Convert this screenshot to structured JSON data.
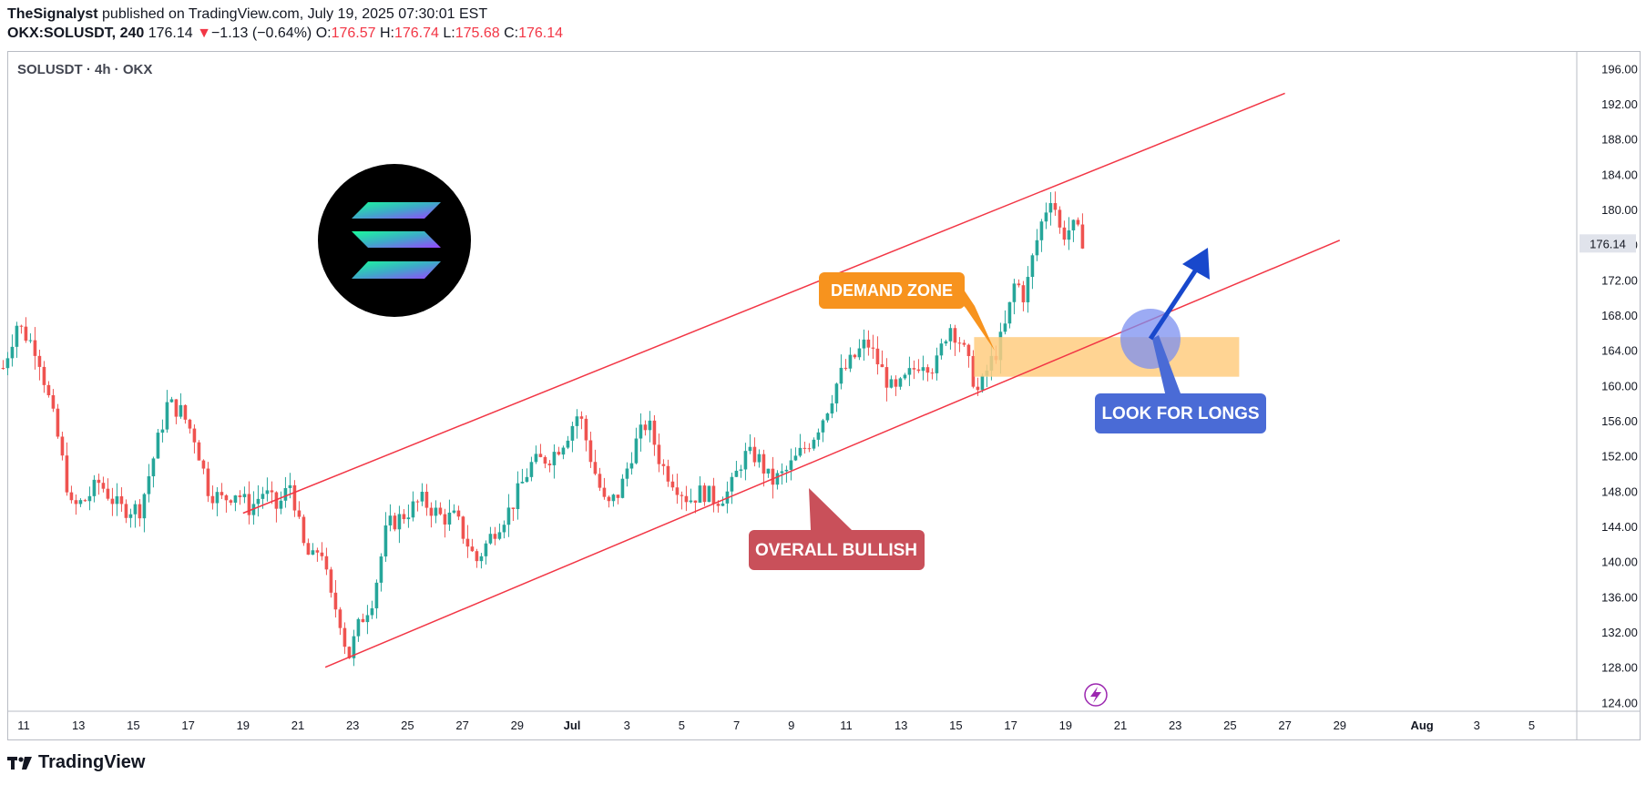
{
  "header": {
    "author": "TheSignalyst",
    "published": " published on TradingView.com, July 19, 2025 07:30:01 EST",
    "symbol": "OKX:SOLUSDT, 240",
    "last": "176.14",
    "change_arrow": "▼",
    "change": "−1.13 (−0.64%)",
    "o_label": "O:",
    "o": "176.57",
    "h_label": "H:",
    "h": "176.74",
    "l_label": "L:",
    "l": "175.68",
    "c_label": "C:",
    "c": "176.14"
  },
  "symbol_label": "SOLUSDT · 4h · OKX",
  "footer": {
    "brand": "TradingView"
  },
  "colors": {
    "up": "#26a69a",
    "down": "#ef5350",
    "channel": "#f23645",
    "demand": "#ffcc80",
    "demand_label": "#f7931e",
    "bullish_label": "#c9505a",
    "longs_label": "#4a6bd6",
    "arrow": "#1848cc"
  },
  "chart_data": {
    "type": "candlestick",
    "y_axis": {
      "ticks": [
        124,
        128,
        132,
        136,
        140,
        144,
        148,
        152,
        156,
        160,
        164,
        168,
        172,
        176,
        180,
        184,
        188,
        192,
        196
      ],
      "ylim": [
        123,
        198
      ],
      "side": "right"
    },
    "x_axis": {
      "ticks": [
        "11",
        "13",
        "15",
        "17",
        "19",
        "21",
        "23",
        "25",
        "27",
        "29",
        "Jul",
        "3",
        "5",
        "7",
        "9",
        "11",
        "13",
        "15",
        "17",
        "19",
        "21",
        "23",
        "25",
        "27",
        "29",
        "Aug",
        "3",
        "5"
      ]
    },
    "last_price": 176.14,
    "close_path": [
      [
        "2025-06-10",
        162
      ],
      [
        "2025-06-10",
        167
      ],
      [
        "2025-06-11",
        164
      ],
      [
        "2025-06-12",
        154
      ],
      [
        "2025-06-12",
        146
      ],
      [
        "2025-06-13",
        147
      ],
      [
        "2025-06-13",
        149
      ],
      [
        "2025-06-14",
        146
      ],
      [
        "2025-06-15",
        146
      ],
      [
        "2025-06-15",
        152
      ],
      [
        "2025-06-16",
        158
      ],
      [
        "2025-06-16",
        157
      ],
      [
        "2025-06-17",
        154
      ],
      [
        "2025-06-17",
        148
      ],
      [
        "2025-06-18",
        147
      ],
      [
        "2025-06-18",
        148
      ],
      [
        "2025-06-19",
        146
      ],
      [
        "2025-06-19",
        148
      ],
      [
        "2025-06-20",
        146
      ],
      [
        "2025-06-20",
        149
      ],
      [
        "2025-06-21",
        142
      ],
      [
        "2025-06-21",
        140
      ],
      [
        "2025-06-21",
        142
      ],
      [
        "2025-06-22",
        136
      ],
      [
        "2025-06-22",
        134
      ],
      [
        "2025-06-22",
        129
      ],
      [
        "2025-06-23",
        133
      ],
      [
        "2025-06-23",
        136
      ],
      [
        "2025-06-24",
        144
      ],
      [
        "2025-06-24",
        145
      ],
      [
        "2025-06-25",
        147
      ],
      [
        "2025-06-26",
        145
      ],
      [
        "2025-06-26",
        145
      ],
      [
        "2025-06-27",
        140
      ],
      [
        "2025-06-28",
        144
      ],
      [
        "2025-06-28",
        146
      ],
      [
        "2025-06-29",
        151
      ],
      [
        "2025-06-30",
        152
      ],
      [
        "2025-06-30",
        154
      ],
      [
        "2025-07-01",
        157
      ],
      [
        "2025-07-01",
        151
      ],
      [
        "2025-07-02",
        146
      ],
      [
        "2025-07-02",
        148
      ],
      [
        "2025-07-03",
        153
      ],
      [
        "2025-07-03",
        156
      ],
      [
        "2025-07-04",
        151
      ],
      [
        "2025-07-04",
        149
      ],
      [
        "2025-07-05",
        147
      ],
      [
        "2025-07-05",
        148
      ],
      [
        "2025-07-06",
        147
      ],
      [
        "2025-07-06",
        148
      ],
      [
        "2025-07-07",
        152
      ],
      [
        "2025-07-07",
        152
      ],
      [
        "2025-07-08",
        149
      ],
      [
        "2025-07-08",
        150
      ],
      [
        "2025-07-09",
        152
      ],
      [
        "2025-07-09",
        154
      ],
      [
        "2025-07-10",
        157
      ],
      [
        "2025-07-10",
        161
      ],
      [
        "2025-07-11",
        163
      ],
      [
        "2025-07-11",
        165
      ],
      [
        "2025-07-12",
        162
      ],
      [
        "2025-07-12",
        159
      ],
      [
        "2025-07-13",
        161
      ],
      [
        "2025-07-13",
        163
      ],
      [
        "2025-07-14",
        162
      ],
      [
        "2025-07-14",
        167
      ],
      [
        "2025-07-15",
        165
      ],
      [
        "2025-07-15",
        162
      ],
      [
        "2025-07-15",
        159
      ],
      [
        "2025-07-16",
        162
      ],
      [
        "2025-07-16",
        164
      ],
      [
        "2025-07-16",
        167
      ],
      [
        "2025-07-17",
        172
      ],
      [
        "2025-07-17",
        170
      ],
      [
        "2025-07-17",
        175
      ],
      [
        "2025-07-18",
        179
      ],
      [
        "2025-07-18",
        182
      ],
      [
        "2025-07-18",
        177
      ],
      [
        "2025-07-19",
        178
      ],
      [
        "2025-07-19",
        176.14
      ]
    ],
    "channel": {
      "upper": [
        [
          "2025-06-19",
          145.5
        ],
        [
          "2025-07-27",
          193.2
        ]
      ],
      "lower": [
        [
          "2025-06-22",
          128
        ],
        [
          "2025-07-29",
          176.5
        ]
      ]
    },
    "demand_zone": {
      "from": "2025-07-15",
      "to": "2025-07-25",
      "y_top": 165.5,
      "y_bottom": 161
    },
    "annotations": [
      {
        "text": "DEMAND ZONE",
        "kind": "demand"
      },
      {
        "text": "OVERALL BULLISH",
        "kind": "bullish"
      },
      {
        "text": "LOOK FOR LONGS",
        "kind": "longs"
      }
    ]
  }
}
